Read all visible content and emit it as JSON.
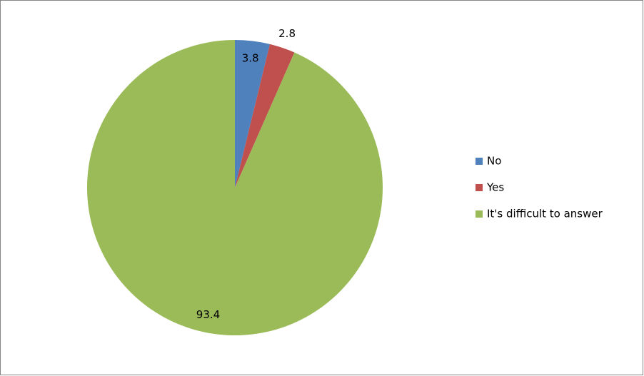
{
  "chart_data": {
    "type": "pie",
    "categories": [
      "No",
      "Yes",
      "It's difficult to answer"
    ],
    "values": [
      3.8,
      2.8,
      93.4
    ],
    "colors": [
      "#4f81bd",
      "#c0504d",
      "#9bbb59"
    ],
    "legend": "right"
  }
}
